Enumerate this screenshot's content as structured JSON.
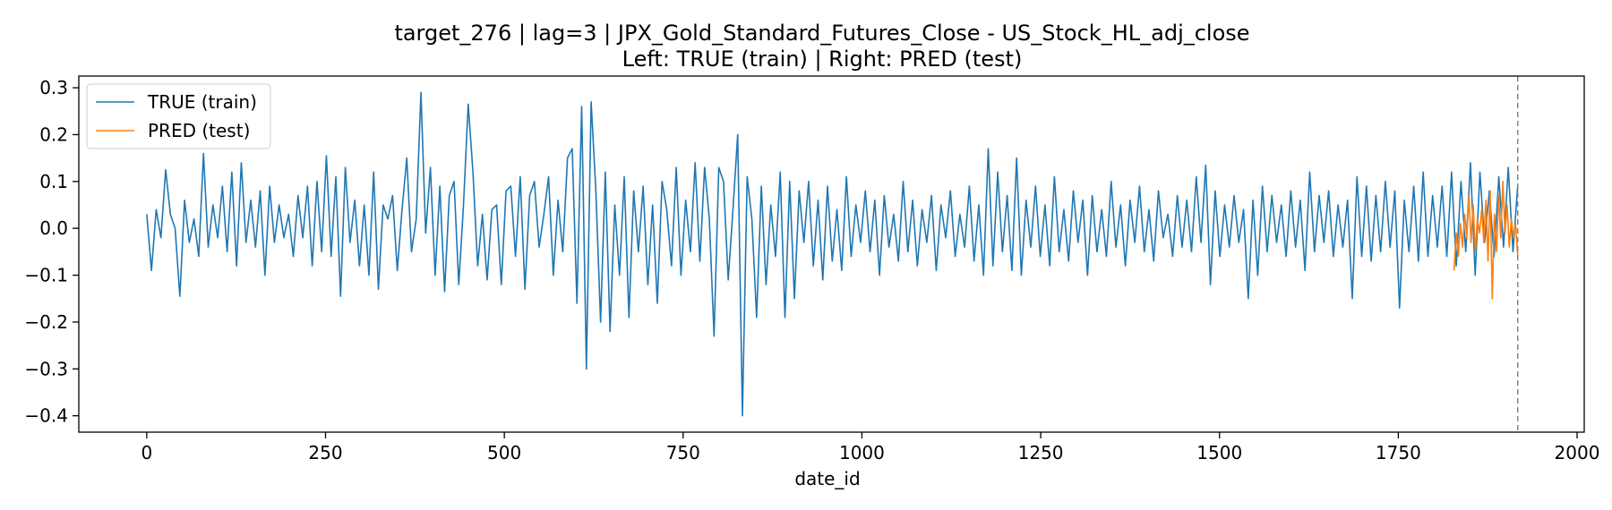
{
  "chart_data": {
    "type": "line",
    "title": "target_276 | lag=3 | JPX_Gold_Standard_Futures_Close - US_Stock_HL_adj_close",
    "subtitle": "Left: TRUE (train) | Right: PRED (test)",
    "xlabel": "date_id",
    "ylabel": "",
    "xlim": [
      -95,
      2010
    ],
    "ylim": [
      -0.435,
      0.325
    ],
    "x_ticks": [
      0,
      250,
      500,
      750,
      1000,
      1250,
      1500,
      1750,
      2000
    ],
    "x_tick_labels": [
      "0",
      "250",
      "500",
      "750",
      "1000",
      "1250",
      "1500",
      "1750",
      "2000"
    ],
    "y_ticks": [
      0.3,
      0.2,
      0.1,
      0.0,
      -0.1,
      -0.2,
      -0.3,
      -0.4
    ],
    "y_tick_labels": [
      "0.3",
      "0.2",
      "0.1",
      "0.0",
      "−0.1",
      "−0.2",
      "−0.3",
      "−0.4"
    ],
    "grid": false,
    "legend_position": "top-left",
    "vline": {
      "x": 1917,
      "style": "dashed",
      "color": "#7f7f7f"
    },
    "series": [
      {
        "name": "TRUE (train)",
        "color": "#1f77b4",
        "x_range": [
          0,
          1917
        ],
        "values": [
          0.03,
          -0.09,
          0.04,
          -0.02,
          0.125,
          0.03,
          0.0,
          -0.145,
          0.06,
          -0.03,
          0.02,
          -0.06,
          0.16,
          -0.04,
          0.05,
          -0.02,
          0.09,
          -0.05,
          0.12,
          -0.08,
          0.14,
          -0.03,
          0.06,
          -0.04,
          0.08,
          -0.1,
          0.09,
          -0.03,
          0.05,
          -0.02,
          0.03,
          -0.06,
          0.07,
          -0.02,
          0.09,
          -0.08,
          0.1,
          -0.05,
          0.155,
          -0.06,
          0.11,
          -0.145,
          0.13,
          -0.03,
          0.06,
          -0.08,
          0.05,
          -0.1,
          0.12,
          -0.13,
          0.05,
          0.02,
          0.07,
          -0.09,
          0.04,
          0.15,
          -0.05,
          0.02,
          0.29,
          -0.01,
          0.13,
          -0.1,
          0.09,
          -0.135,
          0.07,
          0.1,
          -0.12,
          0.05,
          0.265,
          0.12,
          -0.08,
          0.03,
          -0.11,
          0.04,
          0.05,
          -0.12,
          0.08,
          0.09,
          -0.06,
          0.11,
          -0.13,
          0.07,
          0.1,
          -0.04,
          0.03,
          0.11,
          -0.1,
          0.06,
          -0.05,
          0.15,
          0.17,
          -0.16,
          0.26,
          -0.3,
          0.27,
          0.08,
          -0.2,
          0.12,
          -0.22,
          0.05,
          -0.1,
          0.11,
          -0.19,
          0.08,
          -0.05,
          0.09,
          -0.12,
          0.05,
          -0.16,
          0.1,
          0.04,
          -0.08,
          0.13,
          -0.1,
          0.06,
          -0.05,
          0.14,
          -0.07,
          0.13,
          0.02,
          -0.23,
          0.13,
          0.1,
          -0.11,
          0.04,
          0.2,
          -0.4,
          0.11,
          0.02,
          -0.19,
          0.09,
          -0.12,
          0.05,
          -0.06,
          0.12,
          -0.19,
          0.1,
          -0.15,
          0.08,
          -0.03,
          0.1,
          -0.08,
          0.06,
          -0.11,
          0.09,
          -0.07,
          0.04,
          -0.09,
          0.11,
          -0.06,
          0.05,
          -0.03,
          0.08,
          -0.05,
          0.06,
          -0.1,
          0.07,
          -0.04,
          0.03,
          -0.07,
          0.1,
          -0.05,
          0.06,
          -0.08,
          0.04,
          -0.03,
          0.07,
          -0.09,
          0.05,
          -0.02,
          0.08,
          -0.06,
          0.03,
          -0.04,
          0.09,
          -0.07,
          0.05,
          -0.1,
          0.17,
          -0.08,
          0.12,
          -0.05,
          0.07,
          -0.09,
          0.15,
          -0.1,
          0.06,
          -0.04,
          0.09,
          -0.06,
          0.05,
          -0.08,
          0.11,
          -0.05,
          0.04,
          -0.07,
          0.08,
          -0.03,
          0.06,
          -0.1,
          0.07,
          -0.05,
          0.04,
          -0.06,
          0.1,
          -0.04,
          0.05,
          -0.08,
          0.06,
          -0.03,
          0.09,
          -0.05,
          0.04,
          -0.07,
          0.08,
          -0.02,
          0.03,
          -0.06,
          0.07,
          -0.04,
          0.06,
          -0.05,
          0.11,
          -0.03,
          0.135,
          -0.12,
          0.08,
          -0.06,
          0.05,
          -0.04,
          0.07,
          -0.03,
          0.04,
          -0.15,
          0.06,
          -0.1,
          0.09,
          -0.05,
          0.07,
          -0.03,
          0.05,
          -0.06,
          0.08,
          -0.04,
          0.06,
          -0.09,
          0.12,
          -0.05,
          0.07,
          -0.03,
          0.08,
          -0.06,
          0.05,
          -0.04,
          0.06,
          -0.15,
          0.11,
          -0.06,
          0.09,
          -0.07,
          0.07,
          -0.05,
          0.1,
          -0.04,
          0.08,
          -0.17,
          0.06,
          -0.05,
          0.09,
          -0.07,
          0.12,
          -0.06,
          0.07,
          -0.04,
          0.09,
          -0.06,
          0.12,
          -0.08,
          0.1,
          -0.05,
          0.14,
          -0.1,
          0.12,
          -0.03,
          0.08,
          -0.06,
          0.11,
          -0.04,
          0.13,
          -0.05,
          0.09
        ]
      },
      {
        "name": "PRED (test)",
        "color": "#ff7f0e",
        "x_range": [
          1828,
          1917
        ],
        "values": [
          -0.09,
          -0.01,
          -0.06,
          0.01,
          -0.04,
          0.03,
          -0.02,
          0.07,
          -0.03,
          0.05,
          -0.05,
          0.02,
          -0.01,
          0.04,
          -0.03,
          0.06,
          -0.07,
          0.08,
          -0.15,
          0.03,
          -0.05,
          0.07,
          -0.02,
          0.1,
          -0.01,
          0.05,
          -0.04,
          0.02,
          -0.02,
          0.01,
          -0.06
        ]
      }
    ]
  }
}
